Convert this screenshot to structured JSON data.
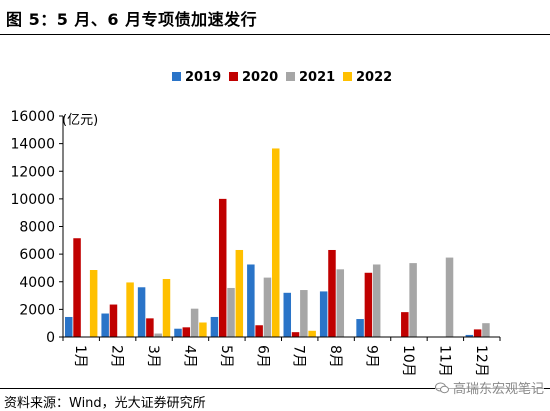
{
  "title": "图 5：5 月、6 月专项债加速发行",
  "source": "资料来源：Wind，光大证券研究所",
  "watermark": "高瑞东宏观笔记",
  "chart_data": {
    "type": "bar",
    "unit_label": "(亿元)",
    "categories": [
      "1月",
      "2月",
      "3月",
      "4月",
      "5月",
      "6月",
      "7月",
      "8月",
      "9月",
      "10月",
      "11月",
      "12月"
    ],
    "ylim": [
      0,
      16000
    ],
    "yticks": [
      0,
      2000,
      4000,
      6000,
      8000,
      10000,
      12000,
      14000,
      16000
    ],
    "grid": false,
    "legend_position": "top",
    "series": [
      {
        "name": "2019",
        "color": "#2a74c8",
        "values": [
          1450,
          1700,
          3600,
          600,
          1450,
          5250,
          3200,
          3300,
          1300,
          0,
          0,
          150
        ]
      },
      {
        "name": "2020",
        "color": "#c00000",
        "values": [
          7150,
          2350,
          1350,
          700,
          10000,
          850,
          350,
          6300,
          4650,
          1800,
          0,
          550
        ]
      },
      {
        "name": "2021",
        "color": "#a6a6a6",
        "values": [
          0,
          0,
          250,
          2050,
          3550,
          4300,
          3400,
          4900,
          5250,
          5350,
          5750,
          1000
        ]
      },
      {
        "name": "2022",
        "color": "#ffc000",
        "values": [
          4850,
          3950,
          4200,
          1050,
          6300,
          13650,
          450,
          null,
          null,
          null,
          null,
          null
        ]
      }
    ]
  }
}
